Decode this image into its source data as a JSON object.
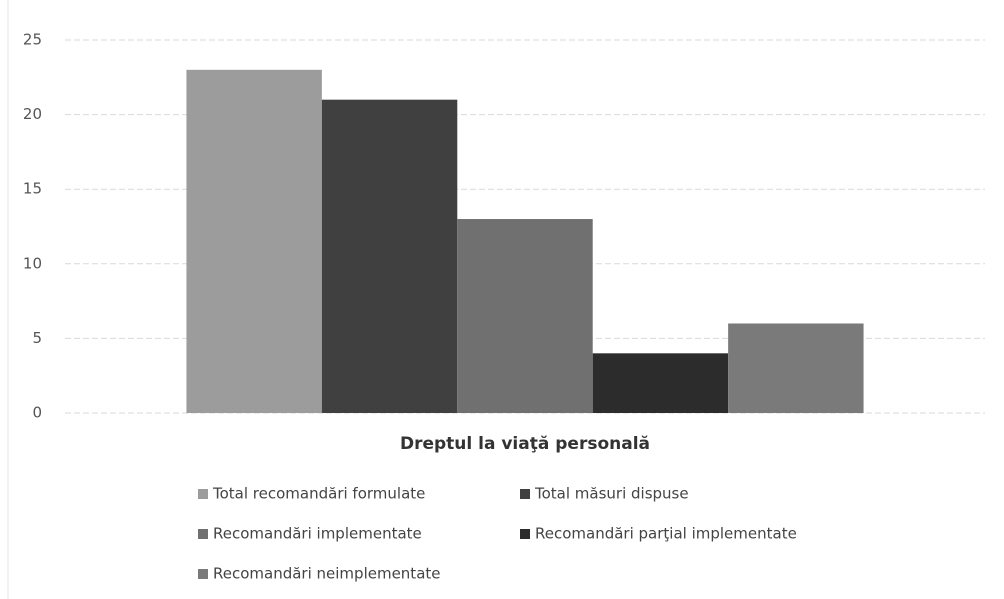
{
  "chart_data": {
    "type": "bar",
    "categories": [
      "Dreptul la viaţă personală"
    ],
    "series": [
      {
        "name": "Total recomandări formulate",
        "color": "#9c9c9c",
        "values": [
          23
        ]
      },
      {
        "name": "Total măsuri dispuse",
        "color": "#404040",
        "values": [
          21
        ]
      },
      {
        "name": "Recomandări implementate",
        "color": "#707070",
        "values": [
          13
        ]
      },
      {
        "name": "Recomandări parţial implementate",
        "color": "#2c2c2c",
        "values": [
          4
        ]
      },
      {
        "name": "Recomandări neimplementate",
        "color": "#7a7a7a",
        "values": [
          6
        ]
      }
    ],
    "ylim": [
      0,
      25
    ],
    "yticks": [
      0,
      5,
      10,
      15,
      20,
      25
    ],
    "grid": true,
    "legend": "bottom"
  }
}
